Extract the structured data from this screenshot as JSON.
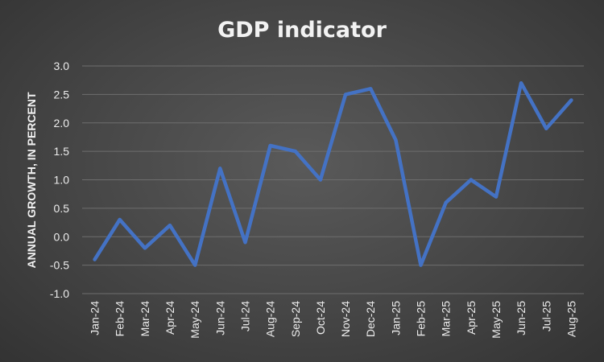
{
  "chart_data": {
    "type": "line",
    "title": "GDP indicator",
    "xlabel": "",
    "ylabel": "ANNUAL GROWTH, IN PERCENT",
    "categories": [
      "Jan-24",
      "Feb-24",
      "Mar-24",
      "Apr-24",
      "May-24",
      "Jun-24",
      "Jul-24",
      "Aug-24",
      "Sep-24",
      "Oct-24",
      "Nov-24",
      "Dec-24",
      "Jan-25",
      "Feb-25",
      "Mar-25",
      "Apr-25",
      "May-25",
      "Jun-25",
      "Jul-25",
      "Aug-25"
    ],
    "series": [
      {
        "values": [
          -0.4,
          0.3,
          -0.2,
          0.2,
          -0.5,
          1.2,
          -0.1,
          1.6,
          1.5,
          1.0,
          2.5,
          2.6,
          1.7,
          -0.5,
          0.6,
          1.0,
          0.7,
          2.7,
          1.9,
          2.4
        ]
      }
    ],
    "ylim": [
      -1.0,
      3.0
    ],
    "yticks": [
      "-1.0",
      "-0.5",
      "0.0",
      "0.5",
      "1.0",
      "1.5",
      "2.0",
      "2.5",
      "3.0"
    ],
    "grid": true,
    "legend": "none",
    "colors": {
      "line": "#4472c4",
      "background": "#404040",
      "grid": "#6e6e6e",
      "text": "#ececec"
    }
  }
}
